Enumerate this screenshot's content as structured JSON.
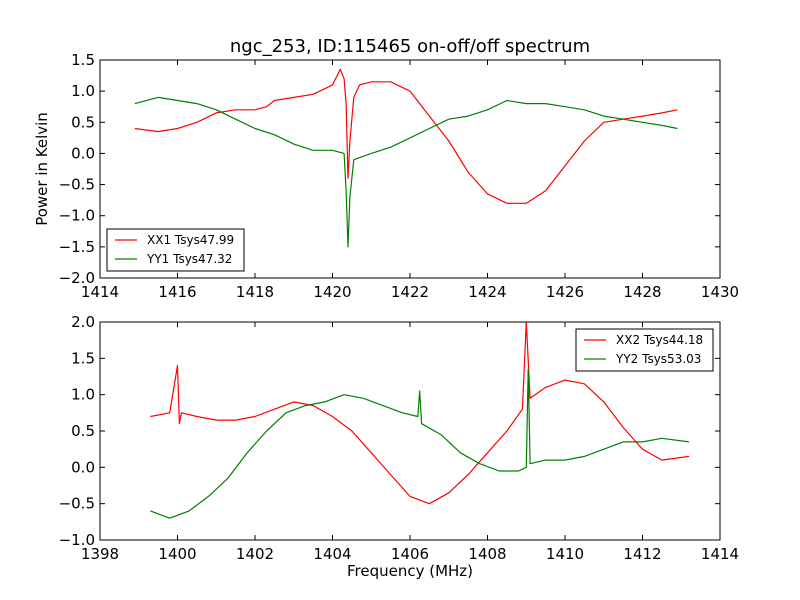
{
  "chart_data": [
    {
      "type": "line",
      "title": "ngc_253, ID:115465 on-off/off spectrum",
      "xlabel": "",
      "ylabel": "Power in Kelvin",
      "xlim": [
        1414,
        1430
      ],
      "ylim": [
        -2.0,
        1.5
      ],
      "xticks": [
        1414,
        1416,
        1418,
        1420,
        1422,
        1424,
        1426,
        1428,
        1430
      ],
      "yticks": [
        -2.0,
        -1.5,
        -1.0,
        -0.5,
        0.0,
        0.5,
        1.0,
        1.5
      ],
      "xtick_labels": [
        "1414",
        "1416",
        "1418",
        "1420",
        "1422",
        "1424",
        "1426",
        "1428",
        "1430"
      ],
      "ytick_labels": [
        "−2.0",
        "−1.5",
        "−1.0",
        "−0.5",
        "0.0",
        "0.5",
        "1.0",
        "1.5"
      ],
      "grid": false,
      "legend_position": "lower-left",
      "series": [
        {
          "name": "XX1 Tsys47.99",
          "color": "#ff0000",
          "x": [
            1414.9,
            1415.5,
            1416.0,
            1416.5,
            1417.0,
            1417.5,
            1418.0,
            1418.3,
            1418.5,
            1419.0,
            1419.5,
            1420.0,
            1420.2,
            1420.3,
            1420.35,
            1420.4,
            1420.45,
            1420.55,
            1420.7,
            1421.0,
            1421.5,
            1422.0,
            1422.5,
            1423.0,
            1423.5,
            1424.0,
            1424.5,
            1425.0,
            1425.5,
            1426.0,
            1426.5,
            1427.0,
            1427.5,
            1428.0,
            1428.5,
            1428.9
          ],
          "y": [
            0.4,
            0.35,
            0.4,
            0.5,
            0.65,
            0.7,
            0.7,
            0.75,
            0.85,
            0.9,
            0.95,
            1.1,
            1.35,
            1.2,
            0.8,
            -0.4,
            0.2,
            0.9,
            1.1,
            1.15,
            1.15,
            1.0,
            0.6,
            0.2,
            -0.3,
            -0.65,
            -0.8,
            -0.8,
            -0.6,
            -0.2,
            0.2,
            0.5,
            0.55,
            0.6,
            0.65,
            0.7
          ]
        },
        {
          "name": "YY1 Tsys47.32",
          "color": "#008000",
          "x": [
            1414.9,
            1415.5,
            1416.0,
            1416.5,
            1417.0,
            1417.5,
            1418.0,
            1418.5,
            1419.0,
            1419.5,
            1420.0,
            1420.3,
            1420.35,
            1420.4,
            1420.45,
            1420.55,
            1421.0,
            1421.5,
            1422.0,
            1422.5,
            1423.0,
            1423.5,
            1424.0,
            1424.5,
            1425.0,
            1425.5,
            1426.0,
            1426.5,
            1427.0,
            1427.5,
            1428.0,
            1428.5,
            1428.9
          ],
          "y": [
            0.8,
            0.9,
            0.85,
            0.8,
            0.7,
            0.55,
            0.4,
            0.3,
            0.15,
            0.05,
            0.05,
            0.0,
            -0.6,
            -1.5,
            -0.7,
            -0.1,
            0.0,
            0.1,
            0.25,
            0.4,
            0.55,
            0.6,
            0.7,
            0.85,
            0.8,
            0.8,
            0.75,
            0.7,
            0.6,
            0.55,
            0.5,
            0.45,
            0.4
          ]
        }
      ]
    },
    {
      "type": "line",
      "title": "",
      "xlabel": "Frequency (MHz)",
      "ylabel": "",
      "xlim": [
        1398,
        1414
      ],
      "ylim": [
        -1.0,
        2.0
      ],
      "xticks": [
        1398,
        1400,
        1402,
        1404,
        1406,
        1408,
        1410,
        1412,
        1414
      ],
      "yticks": [
        -1.0,
        -0.5,
        0.0,
        0.5,
        1.0,
        1.5,
        2.0
      ],
      "xtick_labels": [
        "1398",
        "1400",
        "1402",
        "1404",
        "1406",
        "1408",
        "1410",
        "1412",
        "1414"
      ],
      "ytick_labels": [
        "−1.0",
        "−0.5",
        "0.0",
        "0.5",
        "1.0",
        "1.5",
        "2.0"
      ],
      "grid": false,
      "legend_position": "upper-right",
      "series": [
        {
          "name": "XX2 Tsys44.18",
          "color": "#ff0000",
          "x": [
            1399.3,
            1399.8,
            1400.0,
            1400.05,
            1400.1,
            1400.5,
            1401.0,
            1401.5,
            1402.0,
            1402.5,
            1403.0,
            1403.5,
            1404.0,
            1404.5,
            1405.0,
            1405.5,
            1406.0,
            1406.5,
            1407.0,
            1407.5,
            1408.0,
            1408.5,
            1408.9,
            1409.0,
            1409.1,
            1409.5,
            1410.0,
            1410.5,
            1411.0,
            1411.5,
            1412.0,
            1412.5,
            1413.2
          ],
          "y": [
            0.7,
            0.75,
            1.4,
            0.6,
            0.75,
            0.7,
            0.65,
            0.65,
            0.7,
            0.8,
            0.9,
            0.85,
            0.7,
            0.5,
            0.2,
            -0.1,
            -0.4,
            -0.5,
            -0.35,
            -0.1,
            0.2,
            0.5,
            0.8,
            2.0,
            0.95,
            1.1,
            1.2,
            1.15,
            0.9,
            0.55,
            0.25,
            0.1,
            0.15
          ]
        },
        {
          "name": "YY2 Tsys53.03",
          "color": "#008000",
          "x": [
            1399.3,
            1399.8,
            1400.3,
            1400.8,
            1401.3,
            1401.8,
            1402.3,
            1402.8,
            1403.3,
            1403.8,
            1404.3,
            1404.8,
            1405.3,
            1405.8,
            1406.2,
            1406.25,
            1406.3,
            1406.8,
            1407.3,
            1407.8,
            1408.3,
            1408.8,
            1409.0,
            1409.05,
            1409.1,
            1409.5,
            1410.0,
            1410.5,
            1411.0,
            1411.5,
            1412.0,
            1412.5,
            1413.2
          ],
          "y": [
            -0.6,
            -0.7,
            -0.6,
            -0.4,
            -0.15,
            0.2,
            0.5,
            0.75,
            0.85,
            0.9,
            1.0,
            0.95,
            0.85,
            0.75,
            0.7,
            1.05,
            0.6,
            0.45,
            0.2,
            0.05,
            -0.05,
            -0.05,
            0.0,
            1.35,
            0.05,
            0.1,
            0.1,
            0.15,
            0.25,
            0.35,
            0.35,
            0.4,
            0.35
          ]
        }
      ]
    }
  ]
}
